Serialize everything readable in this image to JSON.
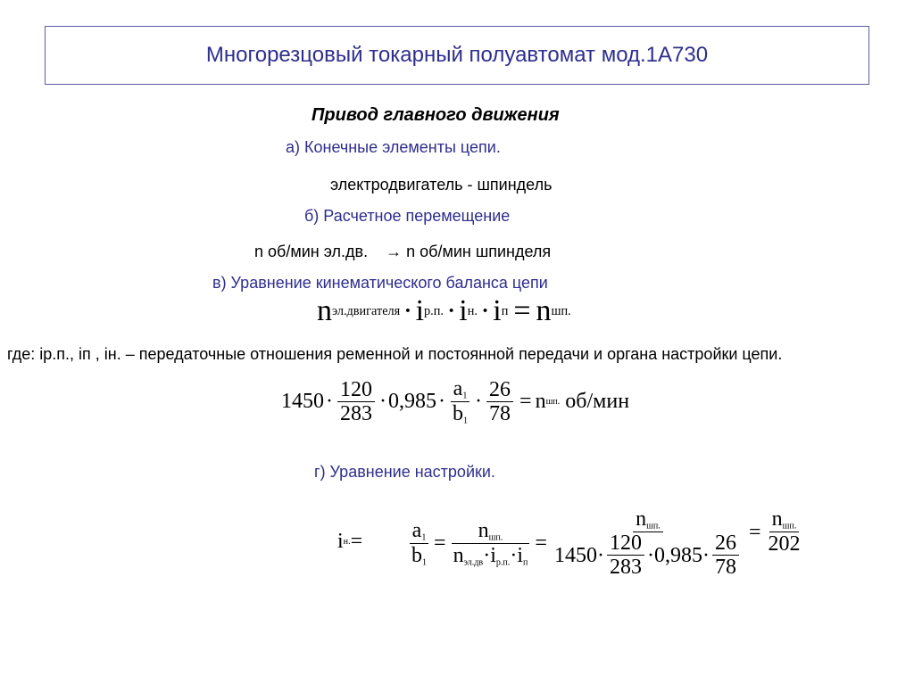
{
  "title": "Многорезцовый токарный  полуавтомат мод.1А730",
  "subtitle": "Привод главного движения",
  "colors": {
    "accent": "#2e2e8e",
    "text": "#000000"
  },
  "section_a": {
    "label": "а) Конечные элементы цепи.",
    "text": "электродвигатель - шпиндель"
  },
  "section_b": {
    "label": "б) Расчетное перемещение",
    "left": "n об/мин эл.дв.",
    "arrow": "→",
    "right": "n об/мин шпинделя"
  },
  "section_v": {
    "label": "в) Уравнение кинематического баланса цепи",
    "eq": {
      "n": "n",
      "n_sub": "эл.двигателя",
      "dot": "·",
      "i": "i",
      "i1_sub": "р.п.",
      "i2_sub": "н.",
      "i3_sub": "п",
      "eq": "=",
      "n_out_sub": "шп."
    },
    "where": "где: iр.п., iп , iн. – передаточные отношения ременной и постоянной передачи и органа настройки цепи.",
    "eq2": {
      "a": "1450",
      "f1_num": "120",
      "f1_den": "283",
      "k": "0,985",
      "f2_num": "a",
      "f2_num_sub": "1",
      "f2_den": "b",
      "f2_den_sub": "1",
      "f3_num": "26",
      "f3_den": "78",
      "unit": "об/мин"
    }
  },
  "section_g": {
    "label": "г) Уравнение настройки.",
    "lhs": "i",
    "lhs_sub": "н.",
    "lhs_eq": "=",
    "mid_den_n_sub": "эл.дв",
    "last_den": "202"
  }
}
